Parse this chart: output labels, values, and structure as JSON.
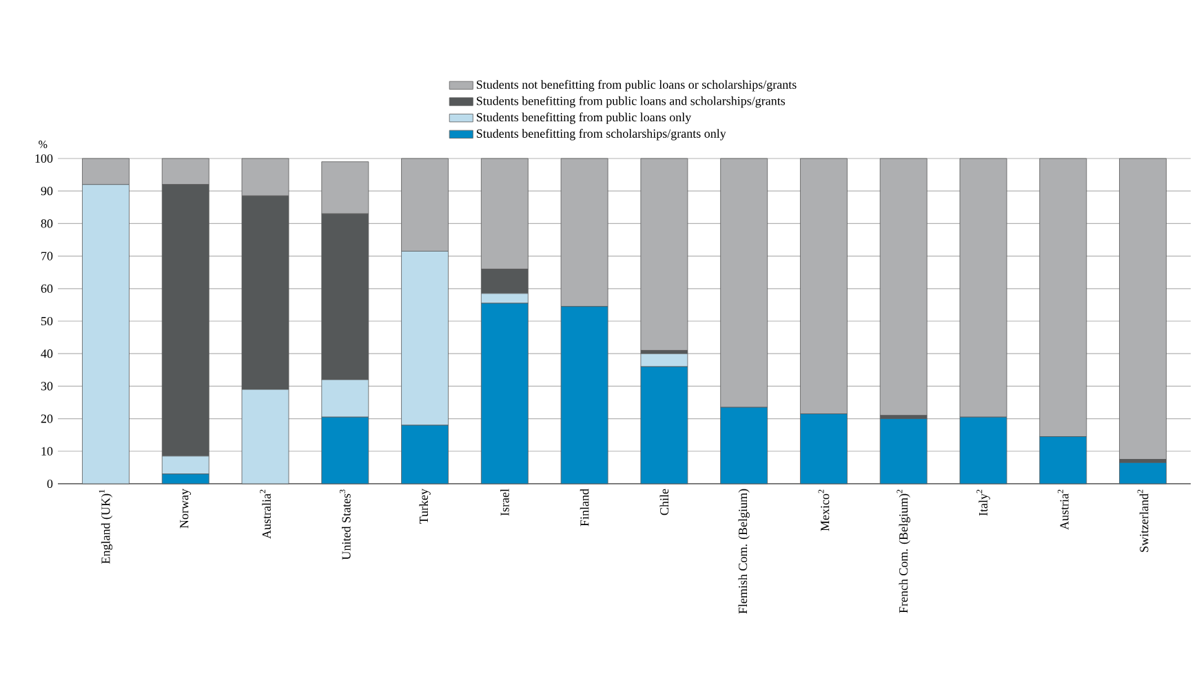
{
  "chart_data": {
    "type": "bar",
    "stacked": true,
    "ylabel": "%",
    "categories": [
      "England (UK)$^{1}$",
      "Norway",
      "Australia$^{2}$",
      "United States$^{3}$",
      "Turkey",
      "Israel",
      "Finland",
      "Chile",
      "Flemish Com. (Belgium)",
      "Mexico$^{2}$",
      "French Com. (Belgium)$^{2}$",
      "Italy$^{2}$",
      "Austria$^{2}$",
      "Switzerland$^{2}$"
    ],
    "series": [
      {
        "name": "Students benefitting from scholarships/grants only",
        "color": "#0089c4",
        "values": [
          0,
          3,
          0,
          20.5,
          18,
          55.5,
          54.5,
          36,
          23.5,
          21.5,
          20,
          20.5,
          14.5,
          6.5
        ]
      },
      {
        "name": "Students benefitting from public loans only",
        "color": "#bcdcec",
        "values": [
          92,
          5.5,
          29,
          11.5,
          53.5,
          3,
          0,
          4,
          0,
          0,
          0,
          0,
          0,
          0
        ]
      },
      {
        "name": "Students benefitting from public loans and scholarships/grants",
        "color": "#555859",
        "values": [
          0,
          83.5,
          59.5,
          51,
          0,
          7.5,
          0,
          1,
          0,
          0,
          1,
          0,
          0,
          1
        ]
      },
      {
        "name": "Students not benefitting from public loans or scholarships/grants",
        "color": "#aeafb1",
        "values": [
          8,
          8,
          11.5,
          16,
          28.5,
          34,
          45.5,
          59,
          76.5,
          78.5,
          79,
          79.5,
          85.5,
          92.5
        ]
      }
    ],
    "ylim": [
      0,
      100
    ],
    "yticks": [
      0,
      10,
      20,
      30,
      40,
      50,
      60,
      70,
      80,
      90,
      100
    ],
    "grid": "y",
    "legend": "top"
  }
}
